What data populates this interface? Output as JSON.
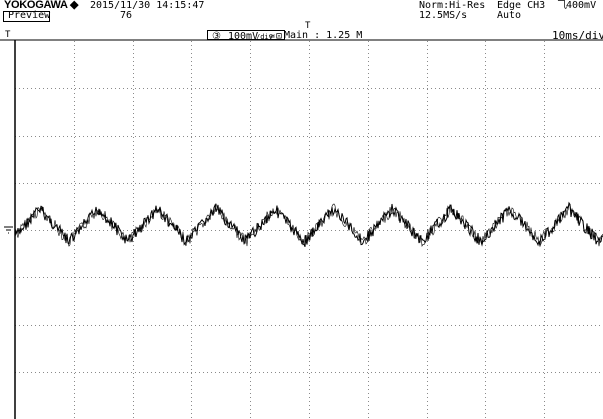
{
  "header": {
    "brand": "YOKOGAWA ◆",
    "datetime": "2015/11/30 14:15:47",
    "record_number": "76",
    "mode_label": "Preview",
    "acq_mode": "Norm:Hi-Res",
    "sample_rate": "12.5MS/s",
    "trigger_type": "Edge CH3",
    "trigger_level": "400mV",
    "trigger_mode": "Auto",
    "trigger_slope_glyph": "⺄"
  },
  "channel": {
    "number": "③",
    "vdiv": "100mV",
    "vdiv_unit": "/div",
    "coupling": "≃",
    "bw_symbol": "⊡"
  },
  "main": {
    "label": "Main : 1.25 M",
    "timebase": "10ms/div"
  },
  "markers": {
    "trigger_point": "T",
    "trigger_arrow": "T"
  },
  "chart_data": {
    "type": "line",
    "grid": true,
    "divisions_x": 10,
    "divisions_y": 8,
    "x_per_div": "10ms/div",
    "y_per_div": "100mV/div",
    "series": [
      {
        "channel": "CH3",
        "shape": "triangle-like periodic ripple with noise",
        "periods_visible": 10,
        "peak_to_peak_div": 0.7,
        "center_div": 0.1
      }
    ]
  },
  "colors": {
    "trace": "#000000",
    "grid": "#8a8a8a",
    "background": "#ffffff"
  }
}
